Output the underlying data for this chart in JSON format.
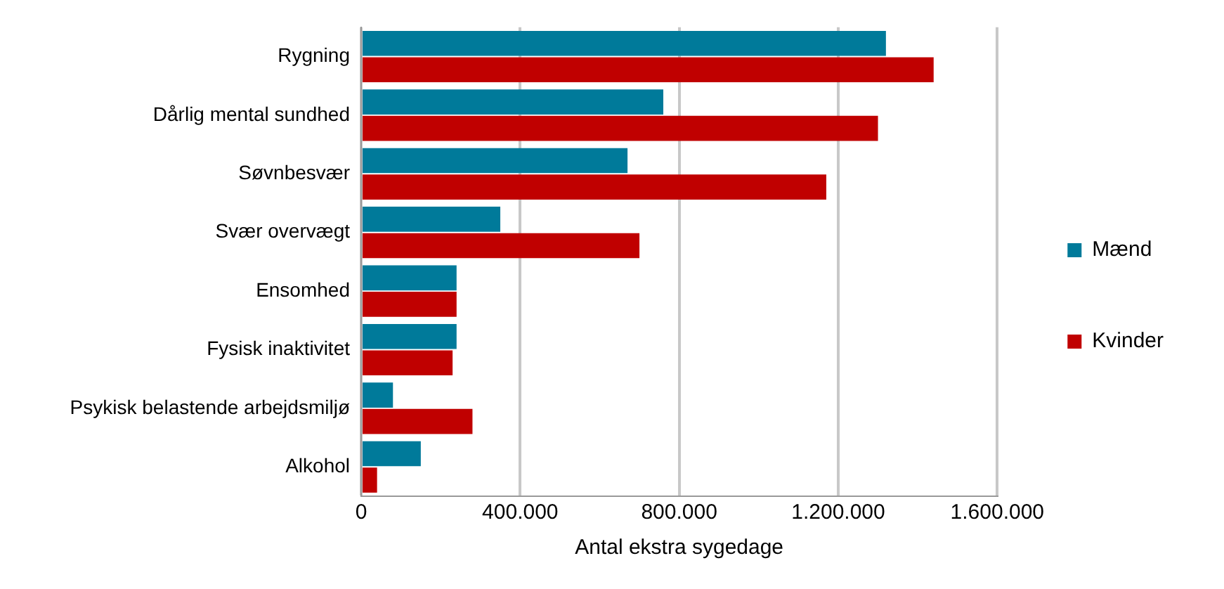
{
  "chart_data": {
    "type": "bar",
    "orientation": "horizontal",
    "xlabel": "Antal ekstra sygedage",
    "categories": [
      "Rygning",
      "Dårlig mental sundhed",
      "Søvnbesvær",
      "Svær overvægt",
      "Ensomhed",
      "Fysisk inaktivitet",
      "Psykisk belastende arbejdsmiljø",
      "Alkohol"
    ],
    "series": [
      {
        "name": "Mænd",
        "color": "#007a9a",
        "values": [
          1320000,
          760000,
          670000,
          350000,
          240000,
          240000,
          80000,
          150000
        ]
      },
      {
        "name": "Kvinder",
        "color": "#c00000",
        "values": [
          1440000,
          1300000,
          1170000,
          700000,
          240000,
          230000,
          280000,
          40000
        ]
      }
    ],
    "xlim": [
      0,
      1600000
    ],
    "xticks": [
      0,
      {
        "value": 400000,
        "label": "400.000"
      },
      {
        "value": 800000,
        "label": "800.000"
      },
      {
        "value": 1200000,
        "label": "1.200.000"
      },
      {
        "value": 1600000,
        "label": "1.600.000"
      }
    ],
    "grid": "x",
    "legend": "right"
  }
}
